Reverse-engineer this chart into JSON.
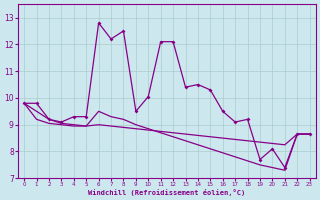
{
  "xlabel": "Windchill (Refroidissement éolien,°C)",
  "background_color": "#cce8ee",
  "grid_color": "#aacccc",
  "line_color": "#880088",
  "xlim": [
    -0.5,
    23.5
  ],
  "ylim": [
    7,
    13.5
  ],
  "yticks": [
    7,
    8,
    9,
    10,
    11,
    12,
    13
  ],
  "xticks": [
    0,
    1,
    2,
    3,
    4,
    5,
    6,
    7,
    8,
    9,
    10,
    11,
    12,
    13,
    14,
    15,
    16,
    17,
    18,
    19,
    20,
    21,
    22,
    23
  ],
  "series1_x": [
    0,
    1,
    2,
    3,
    4,
    5,
    6,
    7,
    8,
    9,
    10,
    11,
    12,
    13,
    14,
    15,
    16,
    17,
    18,
    19,
    20,
    21,
    22,
    23
  ],
  "series1_y": [
    9.8,
    9.8,
    9.2,
    9.1,
    9.3,
    9.3,
    12.8,
    12.2,
    12.5,
    9.5,
    10.05,
    12.1,
    12.1,
    10.4,
    10.5,
    10.3,
    9.5,
    9.1,
    9.2,
    7.7,
    8.1,
    7.4,
    8.65,
    8.65
  ],
  "series2_x": [
    0,
    1,
    2,
    3,
    4,
    5,
    6,
    7,
    8,
    9,
    10,
    11,
    12,
    13,
    14,
    15,
    16,
    17,
    18,
    19,
    20,
    21,
    22,
    23
  ],
  "series2_y": [
    9.8,
    9.2,
    9.05,
    9.0,
    8.95,
    8.95,
    9.0,
    8.95,
    8.9,
    8.85,
    8.8,
    8.75,
    8.7,
    8.65,
    8.6,
    8.55,
    8.5,
    8.45,
    8.4,
    8.35,
    8.3,
    8.25,
    8.65,
    8.65
  ],
  "series3_x": [
    0,
    1,
    2,
    3,
    4,
    5,
    6,
    7,
    8,
    9,
    10,
    11,
    12,
    13,
    14,
    15,
    16,
    17,
    18,
    19,
    20,
    21,
    22,
    23
  ],
  "series3_y": [
    9.8,
    9.5,
    9.2,
    9.05,
    9.0,
    8.95,
    9.5,
    9.3,
    9.2,
    9.0,
    8.85,
    8.7,
    8.55,
    8.4,
    8.25,
    8.1,
    7.95,
    7.8,
    7.65,
    7.5,
    7.4,
    7.3,
    8.65,
    8.65
  ]
}
